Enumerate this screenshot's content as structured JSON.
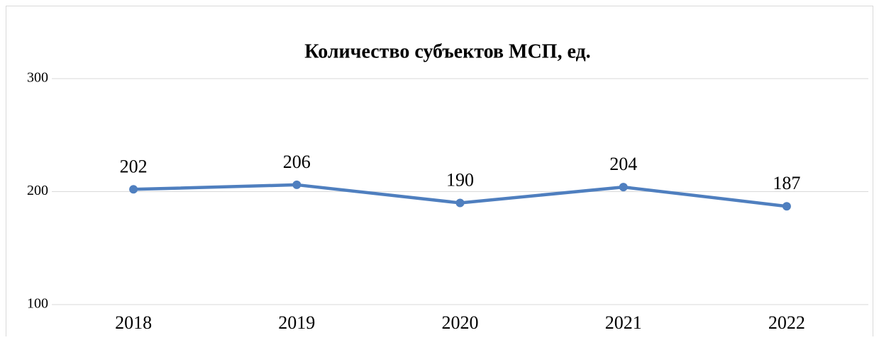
{
  "chart_data": {
    "type": "line",
    "title": "Количество субъектов МСП, ед.",
    "categories": [
      "2018",
      "2019",
      "2020",
      "2021",
      "2022"
    ],
    "series": [
      {
        "name": null,
        "color": "#4f7fbf",
        "values": [
          202,
          206,
          190,
          204,
          187
        ]
      }
    ],
    "ylim": [
      100,
      300
    ],
    "yticks": [
      100,
      200,
      300
    ],
    "grid": true
  }
}
